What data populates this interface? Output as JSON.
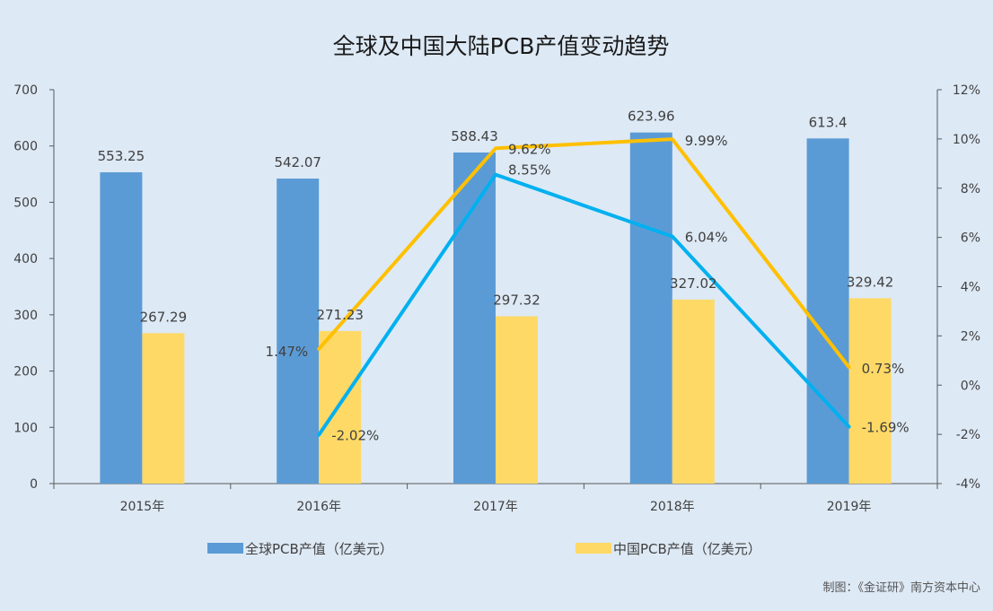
{
  "chart_data": {
    "type": "bar+line",
    "title": "全球及中国大陆PCB产值变动趋势",
    "categories": [
      "2015年",
      "2016年",
      "2017年",
      "2018年",
      "2019年"
    ],
    "y_left": {
      "min": 0,
      "max": 700,
      "ticks": [
        "0",
        "100",
        "200",
        "300",
        "400",
        "500",
        "600",
        "700"
      ]
    },
    "y_right": {
      "min": -4,
      "max": 12,
      "ticks": [
        "-4%",
        "-2%",
        "0%",
        "2%",
        "4%",
        "6%",
        "8%",
        "10%",
        "12%"
      ]
    },
    "bar_series": [
      {
        "name": "全球PCB产值（亿美元）",
        "color": "#5b9bd5",
        "values": [
          553.25,
          542.07,
          588.43,
          623.96,
          613.4
        ],
        "labels": [
          "553.25",
          "542.07",
          "588.43",
          "623.96",
          "613.4"
        ]
      },
      {
        "name": "中国PCB产值（亿美元）",
        "color": "#ffd966",
        "values": [
          267.29,
          271.23,
          297.32,
          327.02,
          329.42
        ],
        "labels": [
          "267.29",
          "271.23",
          "297.32",
          "327.02",
          "329.42"
        ]
      }
    ],
    "line_series": [
      {
        "name": "",
        "color": "#00b0f0",
        "values": [
          -2.02,
          8.55,
          6.04,
          -1.69
        ],
        "labels": [
          "-2.02%",
          "8.55%",
          "6.04%",
          "-1.69%"
        ]
      },
      {
        "name": "",
        "color": "#ffc000",
        "values": [
          1.47,
          9.62,
          9.99,
          0.73
        ],
        "labels": [
          "1.47%",
          "9.62%",
          "9.99%",
          "0.73%"
        ]
      }
    ],
    "line_start_index": 1,
    "grid": false,
    "legend_position": "bottom"
  },
  "source": "制图：《金证研》南方资本中心"
}
